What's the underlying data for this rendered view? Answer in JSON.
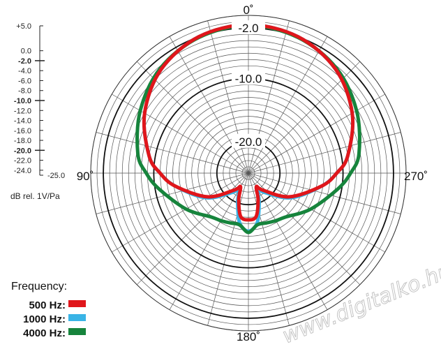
{
  "chart_data": {
    "type": "polar",
    "angle_labels": [
      {
        "angle": 0,
        "text": "0˚"
      },
      {
        "angle": 90,
        "text": "90˚"
      },
      {
        "angle": 180,
        "text": "180˚"
      },
      {
        "angle": 270,
        "text": "270˚"
      }
    ],
    "angle_direction": "counterclockwise",
    "radial_range_db": [
      -25,
      0
    ],
    "ring_labels": [
      {
        "db": -2,
        "text": "-2.0"
      },
      {
        "db": -10,
        "text": "-10.0"
      },
      {
        "db": -20,
        "text": "-20.0"
      }
    ],
    "scale_ticks": [
      {
        "db": 5,
        "text": "+5.0",
        "bold": false
      },
      {
        "db": 0,
        "text": "0.0",
        "bold": false
      },
      {
        "db": -2,
        "text": "-2.0",
        "bold": true
      },
      {
        "db": -4,
        "text": "-4.0",
        "bold": false
      },
      {
        "db": -6,
        "text": "-6.0",
        "bold": false
      },
      {
        "db": -8,
        "text": "-8.0",
        "bold": false
      },
      {
        "db": -10,
        "text": "-10.0",
        "bold": true
      },
      {
        "db": -12,
        "text": "-12.0",
        "bold": false
      },
      {
        "db": -14,
        "text": "-14.0",
        "bold": false
      },
      {
        "db": -16,
        "text": "-16.0",
        "bold": false
      },
      {
        "db": -18,
        "text": "-18.0",
        "bold": false
      },
      {
        "db": -20,
        "text": "-20.0",
        "bold": true
      },
      {
        "db": -22,
        "text": "-22.0",
        "bold": false
      },
      {
        "db": -24,
        "text": "-24.0",
        "bold": false
      },
      {
        "db": -25,
        "text": "-25.0",
        "bold": false
      }
    ],
    "unit_label": "dB rel. 1V/Pa",
    "legend": {
      "title": "Frequency:",
      "placement": "bottom-left",
      "entries": [
        {
          "label": "500 Hz:",
          "color": "#e0161b"
        },
        {
          "label": "1000 Hz:",
          "color": "#39b4e6"
        },
        {
          "label": "4000 Hz:",
          "color": "#16843c"
        }
      ]
    },
    "series": [
      {
        "color": "#39b4e6",
        "angles": [
          0,
          20,
          40,
          60,
          80,
          90,
          100,
          120,
          140,
          150,
          160,
          170,
          180,
          190,
          200,
          210,
          220,
          240,
          260,
          270,
          280,
          300,
          320,
          340
        ],
        "db": [
          -1.5,
          -2.0,
          -3.5,
          -6.0,
          -9.0,
          -11.0,
          -13.2,
          -17.2,
          -21.0,
          -22.0,
          -20.0,
          -17.0,
          -15.8,
          -17.0,
          -20.0,
          -22.0,
          -21.0,
          -17.2,
          -13.2,
          -11.0,
          -9.0,
          -6.0,
          -3.5,
          -2.0
        ]
      },
      {
        "color": "#16843c",
        "angles": [
          0,
          20,
          40,
          60,
          80,
          90,
          100,
          120,
          140,
          150,
          160,
          170,
          180,
          190,
          200,
          210,
          220,
          240,
          260,
          270,
          280,
          300,
          320,
          340
        ],
        "db": [
          -1.6,
          -2.1,
          -3.3,
          -5.2,
          -7.2,
          -8.8,
          -10.6,
          -13.6,
          -15.9,
          -16.3,
          -16.6,
          -16.7,
          -15.6,
          -16.7,
          -16.6,
          -16.3,
          -15.9,
          -13.6,
          -10.6,
          -8.8,
          -7.2,
          -5.2,
          -3.3,
          -2.1
        ]
      },
      {
        "color": "#e0161b",
        "angles": [
          0,
          20,
          40,
          60,
          80,
          90,
          100,
          120,
          140,
          150,
          160,
          170,
          180,
          190,
          200,
          210,
          220,
          240,
          260,
          270,
          280,
          300,
          320,
          340
        ],
        "db": [
          -1.5,
          -2.0,
          -3.5,
          -6.0,
          -9.0,
          -11.0,
          -13.2,
          -17.5,
          -21.5,
          -22.5,
          -20.5,
          -18.0,
          -17.6,
          -18.0,
          -20.5,
          -22.5,
          -21.5,
          -17.5,
          -13.2,
          -11.0,
          -9.0,
          -6.0,
          -3.5,
          -2.0
        ]
      }
    ]
  },
  "watermark": "www.digitalko.hu"
}
